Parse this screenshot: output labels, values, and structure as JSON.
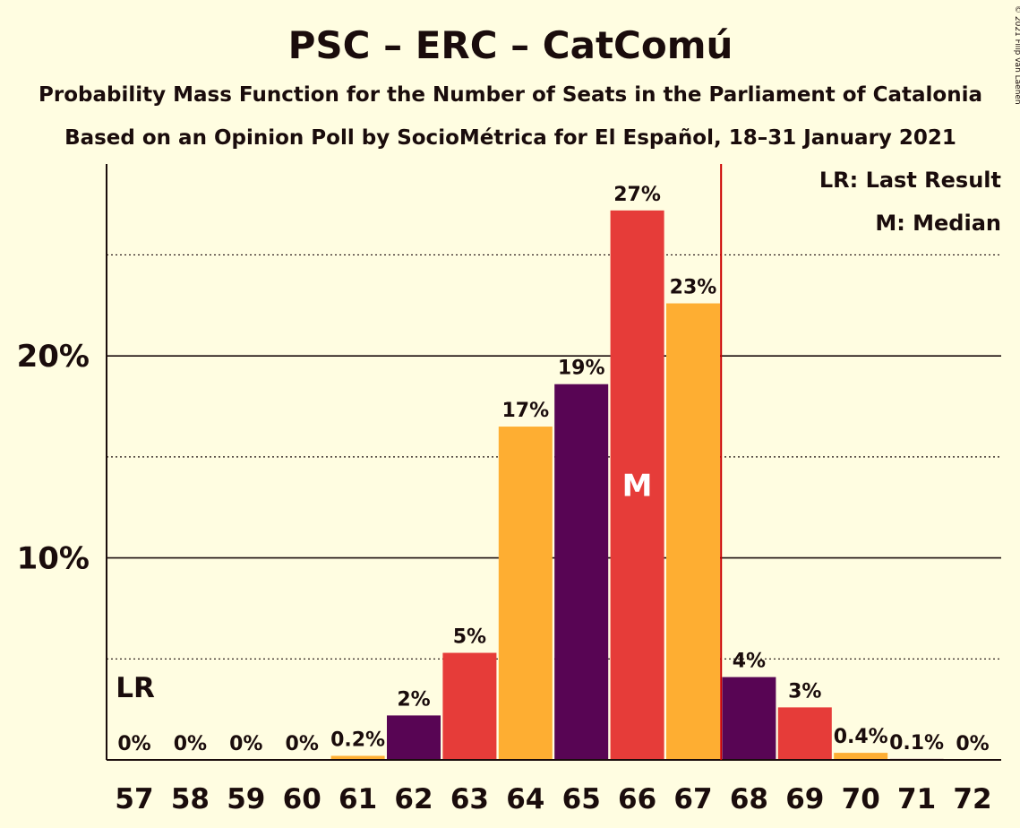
{
  "title": "PSC – ERC – CatComú",
  "subtitle1": "Probability Mass Function for the Number of Seats in the Parliament of Catalonia",
  "subtitle2": "Based on an Opinion Poll by SocioMétrica for El Español, 18–31 January 2021",
  "copyright": "© 2021 Filip van Laenen",
  "legend": {
    "lr": "LR: Last Result",
    "median": "M: Median"
  },
  "colors": {
    "background": "#fffde1",
    "purple": "#580554",
    "red": "#e63c39",
    "orange": "#feae32",
    "majority_line": "#cc0000"
  },
  "chart_data": {
    "type": "bar",
    "categories": [
      "57",
      "58",
      "59",
      "60",
      "61",
      "62",
      "63",
      "64",
      "65",
      "66",
      "67",
      "68",
      "69",
      "70",
      "71",
      "72"
    ],
    "values": [
      0,
      0,
      0,
      0,
      0.2,
      2.2,
      5.3,
      16.5,
      18.6,
      27.2,
      22.6,
      4.1,
      2.6,
      0.35,
      0.05,
      0
    ],
    "labels": [
      "0%",
      "0%",
      "0%",
      "0%",
      "0.2%",
      "2%",
      "5%",
      "17%",
      "19%",
      "27%",
      "23%",
      "4%",
      "3%",
      "0.4%",
      "0.1%",
      "0%"
    ],
    "bar_colors": [
      "purple",
      "red",
      "orange",
      "purple",
      "orange",
      "purple",
      "red",
      "orange",
      "purple",
      "red",
      "orange",
      "purple",
      "red",
      "orange",
      "purple",
      "red"
    ],
    "ylim": [
      0,
      29.5
    ],
    "yticks": [
      {
        "value": 10,
        "label": "10%"
      },
      {
        "value": 20,
        "label": "20%"
      }
    ],
    "dotted_gridlines": [
      5,
      15,
      25
    ],
    "last_result": {
      "category": "57",
      "label": "LR"
    },
    "median": {
      "category": "66",
      "label": "M"
    },
    "majority_after": "67"
  }
}
